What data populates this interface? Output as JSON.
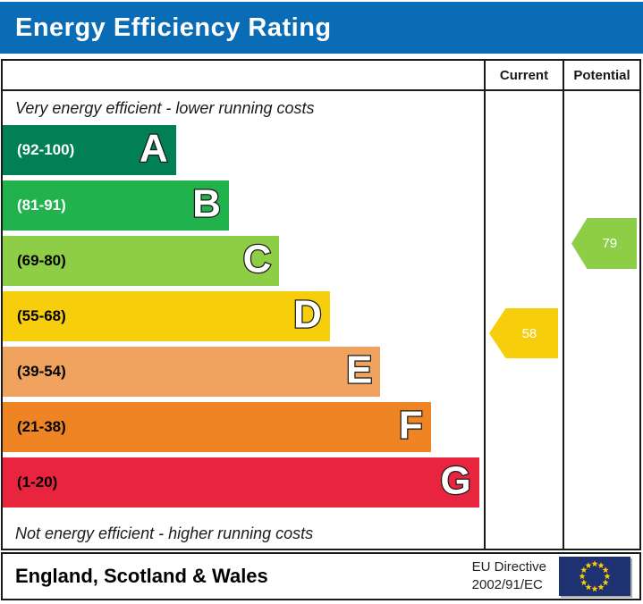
{
  "title": "Energy Efficiency Rating",
  "colors": {
    "title_bar": "#0a6cb5",
    "border": "#1a1a1a",
    "flag_blue": "#1e3272",
    "flag_star": "#ffcc00"
  },
  "columns": {
    "current": "Current",
    "potential": "Potential"
  },
  "top_note": "Very energy efficient - lower running costs",
  "bottom_note": "Not energy efficient - higher running costs",
  "bands": [
    {
      "letter": "A",
      "range": "(92-100)",
      "color": "#008054",
      "width_pct": 36,
      "label_color": "#ffffff"
    },
    {
      "letter": "B",
      "range": "(81-91)",
      "color": "#21b24e",
      "width_pct": 47,
      "label_color": "#ffffff"
    },
    {
      "letter": "C",
      "range": "(69-80)",
      "color": "#8dce46",
      "width_pct": 57.5,
      "label_color": "#000000"
    },
    {
      "letter": "D",
      "range": "(55-68)",
      "color": "#f7ce0b",
      "width_pct": 68,
      "label_color": "#000000"
    },
    {
      "letter": "E",
      "range": "(39-54)",
      "color": "#f0a35e",
      "width_pct": 78.5,
      "label_color": "#000000"
    },
    {
      "letter": "F",
      "range": "(21-38)",
      "color": "#ee8424",
      "width_pct": 89,
      "label_color": "#000000"
    },
    {
      "letter": "G",
      "range": "(1-20)",
      "color": "#e9243f",
      "width_pct": 99,
      "label_color": "#000000"
    }
  ],
  "current": {
    "value": "58",
    "color": "#f7ce0b",
    "band": "D"
  },
  "potential": {
    "value": "79",
    "color": "#8dce46",
    "band": "C"
  },
  "footer": {
    "region": "England, Scotland & Wales",
    "directive_line1": "EU Directive",
    "directive_line2": "2002/91/EC"
  },
  "chart_data": {
    "type": "bar",
    "title": "Energy Efficiency Rating",
    "orientation": "horizontal",
    "bands": [
      {
        "grade": "A",
        "range_label": "(92-100)",
        "min": 92,
        "max": 100,
        "color": "#008054",
        "relative_length": 0.36
      },
      {
        "grade": "B",
        "range_label": "(81-91)",
        "min": 81,
        "max": 91,
        "color": "#21b24e",
        "relative_length": 0.47
      },
      {
        "grade": "C",
        "range_label": "(69-80)",
        "min": 69,
        "max": 80,
        "color": "#8dce46",
        "relative_length": 0.58
      },
      {
        "grade": "D",
        "range_label": "(55-68)",
        "min": 55,
        "max": 68,
        "color": "#f7ce0b",
        "relative_length": 0.68
      },
      {
        "grade": "E",
        "range_label": "(39-54)",
        "min": 39,
        "max": 54,
        "color": "#f0a35e",
        "relative_length": 0.79
      },
      {
        "grade": "F",
        "range_label": "(21-38)",
        "min": 21,
        "max": 38,
        "color": "#ee8424",
        "relative_length": 0.89
      },
      {
        "grade": "G",
        "range_label": "(1-20)",
        "min": 1,
        "max": 20,
        "color": "#e9243f",
        "relative_length": 0.99
      }
    ],
    "current_rating": 58,
    "current_band": "D",
    "potential_rating": 79,
    "potential_band": "C",
    "annotations": [
      "Very energy efficient - lower running costs",
      "Not energy efficient - higher running costs"
    ],
    "region": "England, Scotland & Wales",
    "directive": "EU Directive 2002/91/EC"
  }
}
